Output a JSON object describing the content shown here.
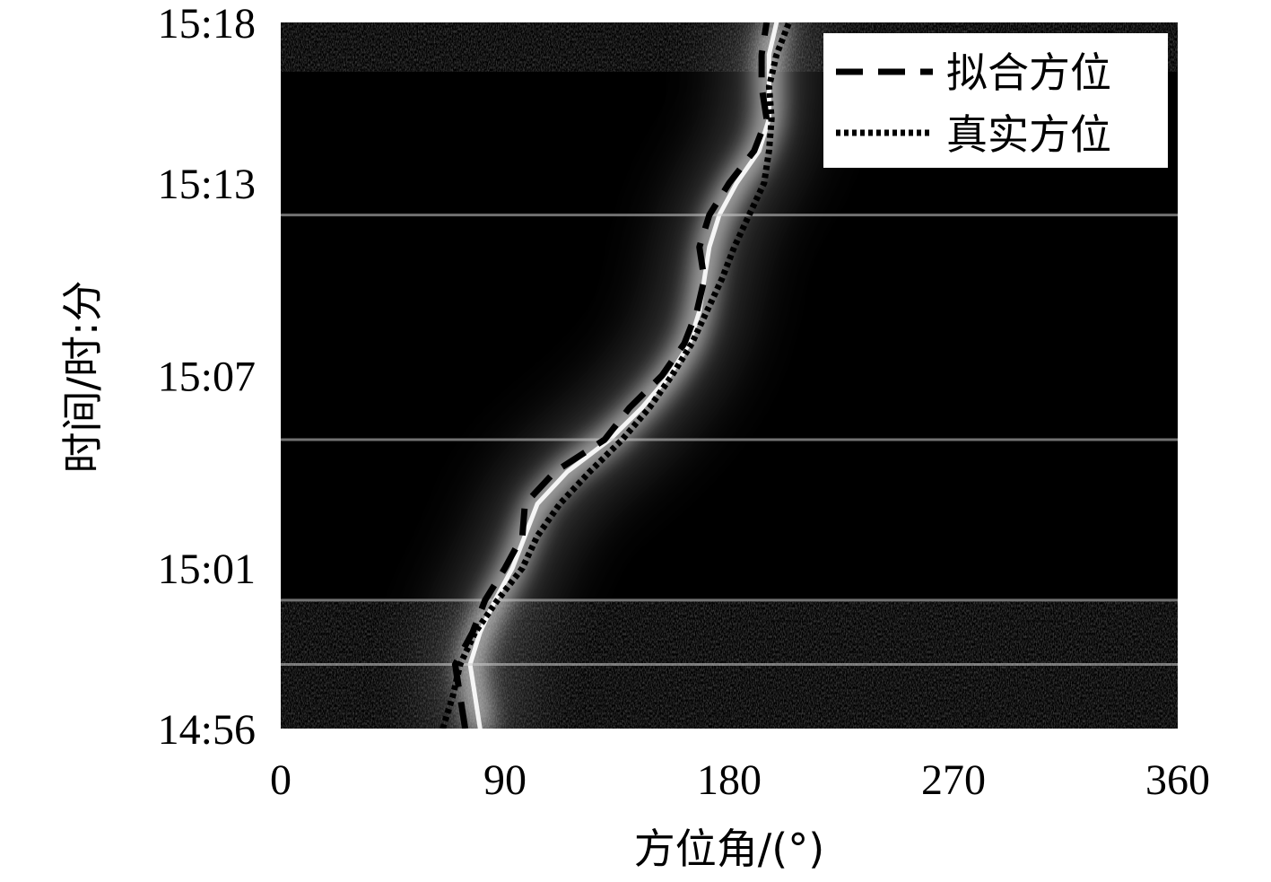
{
  "chart_data": {
    "type": "heatmap",
    "title": "",
    "xlabel": "方位角/(°)",
    "ylabel": "时间/时:分",
    "xlim": [
      0,
      360
    ],
    "x_ticks": [
      "0",
      "90",
      "180",
      "270",
      "360"
    ],
    "x_tick_values": [
      0,
      90,
      180,
      270,
      360
    ],
    "ylim": [
      "14:56",
      "15:18"
    ],
    "y_ticks": [
      "14:56",
      "15:01",
      "15:07",
      "15:13",
      "15:18"
    ],
    "y_tick_values_minutes": [
      0,
      5,
      11,
      17,
      22
    ],
    "grid": false,
    "legend_position": "top-right",
    "colors": {
      "background": "#000000",
      "intensity_peak": "#ffffff",
      "series_line": "#000000",
      "legend_bg": "#ffffff"
    },
    "series": [
      {
        "name": "拟合方位",
        "style": "dashed",
        "x_deg": [
          74,
          72,
          70,
          77,
          82,
          90,
          97,
          98,
          110,
          130,
          140,
          153,
          162,
          167,
          170,
          168,
          172,
          180,
          190,
          195,
          193,
          193,
          195
        ],
        "time": [
          "14:56",
          "14:57",
          "14:58",
          "14:59",
          "15:00",
          "15:01",
          "15:02",
          "15:03",
          "15:04",
          "15:05",
          "15:06",
          "15:07",
          "15:08",
          "15:09",
          "15:10",
          "15:11",
          "15:12",
          "15:13",
          "15:14",
          "15:15",
          "15:16",
          "15:17",
          "15:18"
        ]
      },
      {
        "name": "真实方位",
        "style": "dotted",
        "x_deg": [
          65,
          69,
          72,
          78,
          87,
          97,
          103,
          112,
          124,
          137,
          148,
          157,
          165,
          171,
          177,
          182,
          188,
          194,
          196,
          197,
          196,
          199,
          204
        ],
        "time": [
          "14:56",
          "14:57",
          "14:58",
          "14:59",
          "15:00",
          "15:01",
          "15:02",
          "15:03",
          "15:04",
          "15:05",
          "15:06",
          "15:07",
          "15:08",
          "15:09",
          "15:10",
          "15:11",
          "15:12",
          "15:13",
          "15:14",
          "15:15",
          "15:16",
          "15:17",
          "15:18"
        ]
      }
    ],
    "intensity_ridge": {
      "x_deg": [
        80,
        78,
        76,
        80,
        86,
        93,
        98,
        103,
        115,
        132,
        145,
        156,
        164,
        168,
        170,
        172,
        176,
        183,
        192,
        196,
        196,
        196,
        199
      ],
      "time": [
        "14:56",
        "14:57",
        "14:58",
        "14:59",
        "15:00",
        "15:01",
        "15:02",
        "15:03",
        "15:04",
        "15:05",
        "15:06",
        "15:07",
        "15:08",
        "15:09",
        "15:10",
        "15:11",
        "15:12",
        "15:13",
        "15:14",
        "15:15",
        "15:16",
        "15:17",
        "15:18"
      ]
    },
    "horizontal_streaks_time": [
      "14:58",
      "15:00",
      "15:05",
      "15:12"
    ]
  }
}
